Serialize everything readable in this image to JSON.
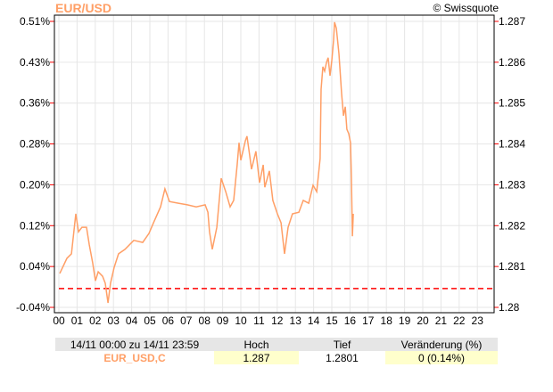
{
  "header": {
    "title": "EUR/USD",
    "copyright": "© Swissquote"
  },
  "chart_data": {
    "type": "line",
    "title": "EUR/USD",
    "series": [
      {
        "name": "EUR_USD,C",
        "color": "#ff9f66",
        "points": [
          [
            0.05,
            1.28083
          ],
          [
            0.44,
            1.2812
          ],
          [
            0.69,
            1.28131
          ],
          [
            0.93,
            1.28229
          ],
          [
            1.08,
            1.28185
          ],
          [
            1.27,
            1.28196
          ],
          [
            1.52,
            1.28196
          ],
          [
            1.67,
            1.28153
          ],
          [
            1.86,
            1.28109
          ],
          [
            2.01,
            1.28065
          ],
          [
            2.16,
            1.28087
          ],
          [
            2.4,
            1.28076
          ],
          [
            2.55,
            1.28059
          ],
          [
            2.7,
            1.28011
          ],
          [
            2.84,
            1.28059
          ],
          [
            3.04,
            1.28098
          ],
          [
            3.28,
            1.28131
          ],
          [
            3.63,
            1.28142
          ],
          [
            4.12,
            1.28164
          ],
          [
            4.61,
            1.28159
          ],
          [
            4.95,
            1.28181
          ],
          [
            5.2,
            1.28207
          ],
          [
            5.59,
            1.28246
          ],
          [
            5.83,
            1.2829
          ],
          [
            6.08,
            1.28259
          ],
          [
            6.57,
            1.28255
          ],
          [
            7.06,
            1.28251
          ],
          [
            7.55,
            1.28246
          ],
          [
            8.04,
            1.28251
          ],
          [
            8.19,
            1.28233
          ],
          [
            8.28,
            1.28185
          ],
          [
            8.43,
            1.28142
          ],
          [
            8.68,
            1.28196
          ],
          [
            8.92,
            1.28316
          ],
          [
            9.17,
            1.28283
          ],
          [
            9.41,
            1.28246
          ],
          [
            9.61,
            1.28262
          ],
          [
            9.8,
            1.28349
          ],
          [
            9.9,
            1.28403
          ],
          [
            10.0,
            1.2836
          ],
          [
            10.25,
            1.28408
          ],
          [
            10.34,
            1.28419
          ],
          [
            10.49,
            1.28371
          ],
          [
            10.59,
            1.28338
          ],
          [
            10.83,
            1.28382
          ],
          [
            11.03,
            1.28305
          ],
          [
            11.23,
            1.28349
          ],
          [
            11.32,
            1.28294
          ],
          [
            11.57,
            1.28334
          ],
          [
            11.76,
            1.28262
          ],
          [
            12.01,
            1.28229
          ],
          [
            12.21,
            1.28207
          ],
          [
            12.4,
            1.28131
          ],
          [
            12.6,
            1.28196
          ],
          [
            12.84,
            1.28229
          ],
          [
            13.19,
            1.28233
          ],
          [
            13.43,
            1.28262
          ],
          [
            13.73,
            1.28255
          ],
          [
            13.97,
            1.28299
          ],
          [
            14.17,
            1.28283
          ],
          [
            14.36,
            1.28364
          ],
          [
            14.41,
            1.28534
          ],
          [
            14.51,
            1.28589
          ],
          [
            14.61,
            1.28578
          ],
          [
            14.71,
            1.286
          ],
          [
            14.8,
            1.28611
          ],
          [
            14.9,
            1.28567
          ],
          [
            15.0,
            1.28604
          ],
          [
            15.1,
            1.28654
          ],
          [
            15.15,
            1.28698
          ],
          [
            15.25,
            1.28683
          ],
          [
            15.39,
            1.28621
          ],
          [
            15.54,
            1.28523
          ],
          [
            15.64,
            1.28469
          ],
          [
            15.74,
            1.28491
          ],
          [
            15.83,
            1.28436
          ],
          [
            15.93,
            1.28425
          ],
          [
            16.03,
            1.28403
          ],
          [
            16.08,
            1.28316
          ],
          [
            16.13,
            1.28174
          ],
          [
            16.18,
            1.28229
          ]
        ]
      }
    ],
    "reference_line": {
      "value": 1.28046,
      "color": "#ff0000",
      "style": "dashed"
    },
    "x_ticks": [
      "00",
      "01",
      "02",
      "03",
      "04",
      "05",
      "06",
      "07",
      "08",
      "09",
      "10",
      "11",
      "12",
      "13",
      "14",
      "15",
      "16",
      "17",
      "18",
      "19",
      "20",
      "21",
      "22",
      "23"
    ],
    "xlim": [
      0,
      24
    ],
    "y_right_ticks": [
      "1.287",
      "1.286",
      "1.285",
      "1.284",
      "1.283",
      "1.282",
      "1.281",
      "1.28"
    ],
    "y_left_ticks": [
      "0.51%",
      "0.43%",
      "0.36%",
      "0.28%",
      "0.20%",
      "0.12%",
      "0.04%",
      "-0.04%"
    ],
    "ylim": [
      1.28,
      1.287
    ],
    "grid": true
  },
  "summary": {
    "period": "14/11 00:00 zu 14/11 23:59",
    "high_label": "Hoch",
    "low_label": "Tief",
    "change_label": "Veränderung (%)",
    "symbol": "EUR_USD,C",
    "high": "1.287",
    "low": "1.2801",
    "change": "0 (0.14%)"
  }
}
